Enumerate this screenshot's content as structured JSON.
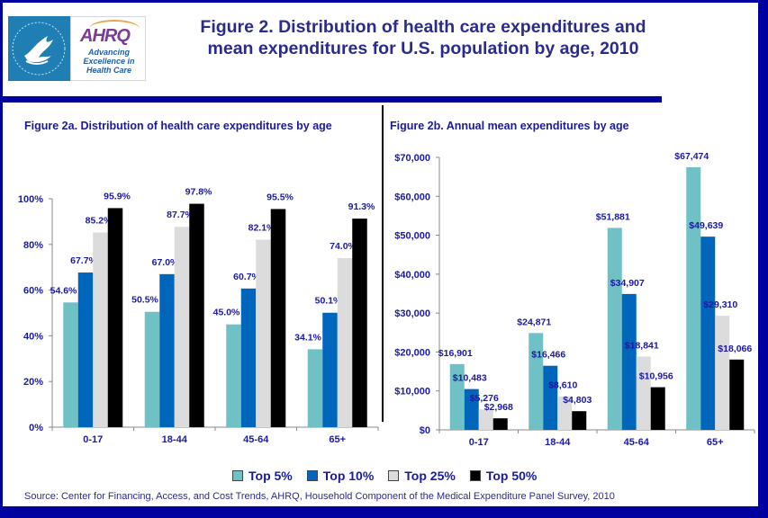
{
  "header": {
    "logo": {
      "hhs_seal": "HHS eagle seal",
      "brand": "AHRQ",
      "tagline": [
        "Advancing",
        "Excellence in",
        "Health Care"
      ]
    },
    "title_lines": [
      "Figure 2. Distribution of health care expenditures and",
      "mean expenditures for U.S. population by age, 2010"
    ]
  },
  "legend": [
    {
      "label": "Top 5%",
      "color": "#6fc1c6"
    },
    {
      "label": "Top 10%",
      "color": "#0066bb"
    },
    {
      "label": "Top 25%",
      "color": "#dcdcdc"
    },
    {
      "label": "Top 50%",
      "color": "#000000"
    }
  ],
  "source": "Source: Center for Financing, Access, and Cost Trends, AHRQ, Household Component of the Medical Expenditure Panel Survey,  2010",
  "chart_data": [
    {
      "type": "bar",
      "title": "Figure 2a. Distribution  of health care expenditures by age",
      "xlabel": "",
      "ylabel": "",
      "categories": [
        "0-17",
        "18-44",
        "45-64",
        "65+"
      ],
      "ylim": [
        0,
        100
      ],
      "yticks": [
        0,
        20,
        40,
        60,
        80,
        100
      ],
      "ytick_labels": [
        "0%",
        "20%",
        "40%",
        "60%",
        "80%",
        "100%"
      ],
      "grid": false,
      "legend_position": "bottom",
      "series": [
        {
          "name": "Top 5%",
          "values": [
            54.6,
            50.5,
            45.0,
            34.1
          ],
          "labels": [
            "54.6%",
            "50.5%",
            "45.0%",
            "34.1%"
          ]
        },
        {
          "name": "Top 10%",
          "values": [
            67.7,
            67.0,
            60.7,
            50.1
          ],
          "labels": [
            "67.7%",
            "67.0%",
            "60.7%",
            "50.1%"
          ]
        },
        {
          "name": "Top 25%",
          "values": [
            85.2,
            87.7,
            82.1,
            74.0
          ],
          "labels": [
            "85.2%",
            "87.7%",
            "82.1%",
            "74.0%"
          ]
        },
        {
          "name": "Top 50%",
          "values": [
            95.9,
            97.8,
            95.5,
            91.3
          ],
          "labels": [
            "95.9%",
            "97.8%",
            "95.5%",
            "91.3%"
          ]
        }
      ]
    },
    {
      "type": "bar",
      "title": "Figure 2b. Annual mean expenditures by age",
      "xlabel": "",
      "ylabel": "",
      "categories": [
        "0-17",
        "18-44",
        "45-64",
        "65+"
      ],
      "ylim": [
        0,
        70000
      ],
      "yticks": [
        0,
        10000,
        20000,
        30000,
        40000,
        50000,
        60000,
        70000
      ],
      "ytick_labels": [
        "$0",
        "$10,000",
        "$20,000",
        "$30,000",
        "$40,000",
        "$50,000",
        "$60,000",
        "$70,000"
      ],
      "grid": false,
      "legend_position": "bottom",
      "series": [
        {
          "name": "Top 5%",
          "values": [
            16901,
            24871,
            51881,
            67474
          ],
          "labels": [
            "$16,901",
            "$24,871",
            "$51,881",
            "$67,474"
          ]
        },
        {
          "name": "Top 10%",
          "values": [
            10483,
            16466,
            34907,
            49639
          ],
          "labels": [
            "$10,483",
            "$16,466",
            "$34,907",
            "$49,639"
          ]
        },
        {
          "name": "Top 25%",
          "values": [
            5276,
            8610,
            18841,
            29310
          ],
          "labels": [
            "$5,276",
            "$8,610",
            "$18,841",
            "$29,310"
          ]
        },
        {
          "name": "Top 50%",
          "values": [
            2968,
            4803,
            10956,
            18066
          ],
          "labels": [
            "$2,968",
            "$4,803",
            "$10,956",
            "$18,066"
          ]
        }
      ]
    }
  ]
}
